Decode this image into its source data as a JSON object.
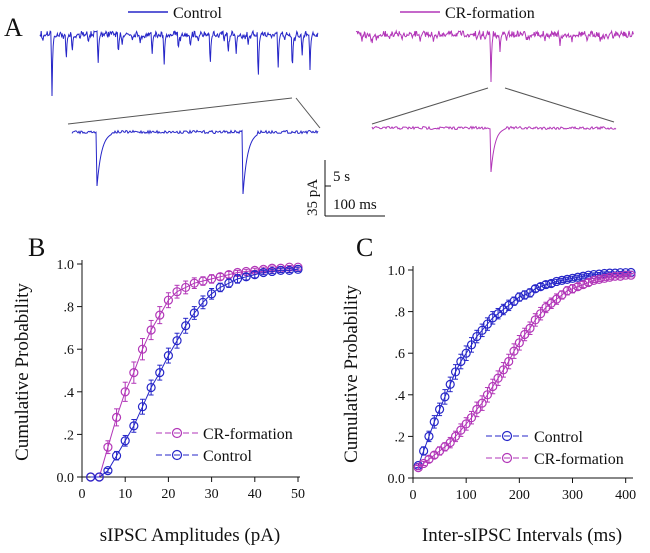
{
  "colors": {
    "control": "#2626c8",
    "cr_formation": "#b236b8",
    "axis": "#111111",
    "zoom_guide": "#555555"
  },
  "panel_a": {
    "letter": "A",
    "legend": {
      "control": "Control",
      "cr_formation": "CR-formation"
    },
    "scale_bar": {
      "amplitude": "35 pA",
      "slow_time": "5 s",
      "fast_time": "100 ms"
    }
  },
  "chart_data": [
    {
      "type": "line",
      "panel": "B",
      "letter": "B",
      "title": "",
      "xlabel": "sIPSC Amplitudes (pA)",
      "ylabel": "Cumulative Probability",
      "xlim": [
        0,
        50
      ],
      "ylim": [
        0,
        1.0
      ],
      "xticks": [
        0,
        10,
        20,
        30,
        40,
        50
      ],
      "xtick_labels": [
        "0",
        "10",
        "20",
        "30",
        "40",
        "50"
      ],
      "yticks": [
        0,
        0.2,
        0.4,
        0.6,
        0.8,
        1.0
      ],
      "ytick_labels": [
        "0.0",
        ".2",
        ".4",
        ".6",
        ".8",
        "1.0"
      ],
      "legend": {
        "position": "bottom-right",
        "entries": [
          "CR-formation",
          "Control"
        ]
      },
      "series": [
        {
          "name": "CR-formation",
          "color_key": "cr_formation",
          "x": [
            2,
            4,
            6,
            8,
            10,
            12,
            14,
            16,
            18,
            20,
            22,
            24,
            26,
            28,
            30,
            32,
            34,
            36,
            38,
            40,
            42,
            44,
            46,
            48,
            50
          ],
          "y": [
            0.0,
            0.0,
            0.14,
            0.28,
            0.4,
            0.49,
            0.6,
            0.69,
            0.76,
            0.83,
            0.87,
            0.89,
            0.91,
            0.92,
            0.93,
            0.94,
            0.95,
            0.96,
            0.965,
            0.97,
            0.975,
            0.98,
            0.98,
            0.985,
            0.985
          ],
          "err": [
            0,
            0,
            0.03,
            0.04,
            0.045,
            0.05,
            0.05,
            0.045,
            0.04,
            0.035,
            0.03,
            0.03,
            0.025,
            0.02,
            0.02,
            0.015,
            0.015,
            0.01,
            0.01,
            0.01,
            0.01,
            0.01,
            0.008,
            0.008,
            0.008
          ]
        },
        {
          "name": "Control",
          "color_key": "control",
          "x": [
            2,
            4,
            6,
            8,
            10,
            12,
            14,
            16,
            18,
            20,
            22,
            24,
            26,
            28,
            30,
            32,
            34,
            36,
            38,
            40,
            42,
            44,
            46,
            48,
            50
          ],
          "y": [
            0.0,
            0.0,
            0.03,
            0.1,
            0.17,
            0.24,
            0.33,
            0.42,
            0.49,
            0.57,
            0.64,
            0.71,
            0.77,
            0.82,
            0.86,
            0.89,
            0.91,
            0.93,
            0.94,
            0.95,
            0.96,
            0.965,
            0.97,
            0.97,
            0.975
          ],
          "err": [
            0,
            0,
            0.01,
            0.02,
            0.025,
            0.03,
            0.035,
            0.035,
            0.035,
            0.035,
            0.035,
            0.035,
            0.03,
            0.03,
            0.025,
            0.02,
            0.02,
            0.02,
            0.015,
            0.015,
            0.01,
            0.01,
            0.01,
            0.01,
            0.01
          ]
        }
      ]
    },
    {
      "type": "line",
      "panel": "C",
      "letter": "C",
      "title": "",
      "xlabel": "Inter-sIPSC Intervals (ms)",
      "ylabel": "Cumulative Probability",
      "xlim": [
        0,
        410
      ],
      "ylim": [
        0,
        1.0
      ],
      "xticks": [
        0,
        100,
        200,
        300,
        400
      ],
      "xtick_labels": [
        "0",
        "100",
        "200",
        "300",
        "400"
      ],
      "yticks": [
        0,
        0.2,
        0.4,
        0.6,
        0.8,
        1.0
      ],
      "ytick_labels": [
        "0.0",
        ".2",
        ".4",
        ".6",
        ".8",
        "1.0"
      ],
      "legend": {
        "position": "bottom-right",
        "entries": [
          "Control",
          "CR-formation"
        ]
      },
      "series": [
        {
          "name": "Control",
          "color_key": "control",
          "x": [
            10,
            20,
            30,
            40,
            50,
            60,
            70,
            80,
            90,
            100,
            110,
            120,
            130,
            140,
            150,
            160,
            170,
            180,
            190,
            200,
            210,
            220,
            230,
            240,
            250,
            260,
            270,
            280,
            290,
            300,
            310,
            320,
            330,
            340,
            350,
            360,
            370,
            380,
            390,
            400,
            410
          ],
          "y": [
            0.06,
            0.13,
            0.2,
            0.27,
            0.33,
            0.39,
            0.45,
            0.51,
            0.56,
            0.6,
            0.64,
            0.68,
            0.71,
            0.74,
            0.77,
            0.79,
            0.81,
            0.83,
            0.85,
            0.87,
            0.88,
            0.89,
            0.91,
            0.92,
            0.93,
            0.935,
            0.945,
            0.95,
            0.955,
            0.96,
            0.965,
            0.97,
            0.975,
            0.978,
            0.98,
            0.983,
            0.985,
            0.985,
            0.987,
            0.987,
            0.988
          ],
          "err": [
            0.01,
            0.02,
            0.025,
            0.03,
            0.03,
            0.035,
            0.035,
            0.035,
            0.035,
            0.035,
            0.035,
            0.03,
            0.03,
            0.03,
            0.03,
            0.025,
            0.025,
            0.025,
            0.02,
            0.02,
            0.02,
            0.02,
            0.015,
            0.015,
            0.015,
            0.015,
            0.01,
            0.01,
            0.01,
            0.01,
            0.01,
            0.01,
            0.008,
            0.008,
            0.008,
            0.008,
            0.006,
            0.006,
            0.006,
            0.006,
            0.006
          ]
        },
        {
          "name": "CR-formation",
          "color_key": "cr_formation",
          "x": [
            10,
            20,
            30,
            40,
            50,
            60,
            70,
            80,
            90,
            100,
            110,
            120,
            130,
            140,
            150,
            160,
            170,
            180,
            190,
            200,
            210,
            220,
            230,
            240,
            250,
            260,
            270,
            280,
            290,
            300,
            310,
            320,
            330,
            340,
            350,
            360,
            370,
            380,
            390,
            400,
            410
          ],
          "y": [
            0.05,
            0.07,
            0.09,
            0.11,
            0.13,
            0.15,
            0.17,
            0.2,
            0.23,
            0.26,
            0.29,
            0.33,
            0.36,
            0.4,
            0.44,
            0.48,
            0.52,
            0.56,
            0.61,
            0.65,
            0.69,
            0.72,
            0.76,
            0.79,
            0.82,
            0.84,
            0.86,
            0.88,
            0.9,
            0.91,
            0.92,
            0.93,
            0.94,
            0.95,
            0.955,
            0.96,
            0.965,
            0.97,
            0.97,
            0.975,
            0.975
          ],
          "err": [
            0.01,
            0.01,
            0.015,
            0.015,
            0.02,
            0.02,
            0.025,
            0.025,
            0.03,
            0.03,
            0.03,
            0.035,
            0.035,
            0.035,
            0.035,
            0.035,
            0.035,
            0.035,
            0.035,
            0.035,
            0.03,
            0.03,
            0.03,
            0.03,
            0.025,
            0.025,
            0.025,
            0.02,
            0.02,
            0.02,
            0.015,
            0.015,
            0.015,
            0.01,
            0.01,
            0.01,
            0.01,
            0.008,
            0.008,
            0.008,
            0.008
          ]
        }
      ]
    }
  ]
}
